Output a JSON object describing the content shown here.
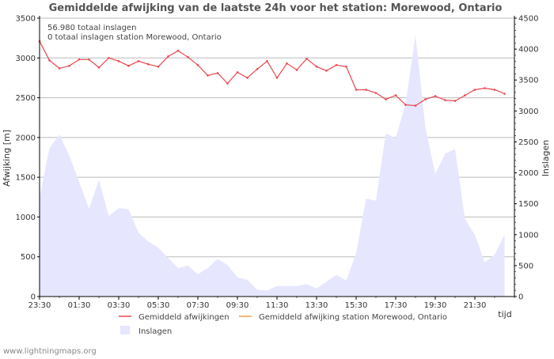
{
  "chart_data": {
    "type": "line",
    "title": "Gemiddelde afwijking van de laatste 24h voor het station: Morewood, Ontario",
    "xlabel": "tijd",
    "ylabel": "Afwijking  [m]",
    "ylabel_right": "Inslagen",
    "ylim": [
      0,
      3500
    ],
    "ylim_right": [
      0,
      4500
    ],
    "y_ticks": [
      0,
      500,
      1000,
      1500,
      2000,
      2500,
      3000,
      3500
    ],
    "y_ticks_right": [
      0,
      500,
      1000,
      1500,
      2000,
      2500,
      3000,
      3500,
      4000,
      4500
    ],
    "x_tick_labels": [
      "23:30",
      "01:30",
      "03:30",
      "05:30",
      "07:30",
      "09:30",
      "11:30",
      "13:30",
      "15:30",
      "17:30",
      "19:30",
      "21:30"
    ],
    "annotations": [
      "56.980 totaal inslagen",
      "0 totaal inslagen station Morewood, Ontario"
    ],
    "series": [
      {
        "name": "Gemiddeld afwijkingen",
        "axis": "left",
        "color": "#e8474f",
        "values": [
          3210,
          2970,
          2870,
          2900,
          2980,
          2980,
          2880,
          3000,
          2960,
          2900,
          2960,
          2920,
          2890,
          3020,
          3090,
          3010,
          2910,
          2780,
          2810,
          2680,
          2820,
          2750,
          2860,
          2960,
          2750,
          2930,
          2850,
          2990,
          2890,
          2840,
          2910,
          2890,
          2600,
          2600,
          2560,
          2480,
          2530,
          2410,
          2400,
          2480,
          2520,
          2470,
          2460,
          2530,
          2600,
          2620,
          2600,
          2550
        ]
      },
      {
        "name": "Gemiddeld afwijking station Morewood, Ontario",
        "axis": "left",
        "color": "#f0a050",
        "values": []
      },
      {
        "name": "Inslagen",
        "axis": "right",
        "type": "area",
        "color": "#e6e6ff",
        "values": [
          1600,
          2400,
          2620,
          2280,
          1850,
          1420,
          1880,
          1300,
          1430,
          1410,
          1030,
          890,
          790,
          620,
          460,
          500,
          360,
          460,
          610,
          510,
          310,
          270,
          110,
          100,
          170,
          170,
          170,
          200,
          130,
          240,
          350,
          260,
          700,
          1580,
          1550,
          2640,
          2560,
          3120,
          4230,
          2730,
          1980,
          2310,
          2380,
          1250,
          1000,
          550,
          680,
          1000
        ]
      }
    ]
  },
  "footer": "www.lightningmaps.org"
}
